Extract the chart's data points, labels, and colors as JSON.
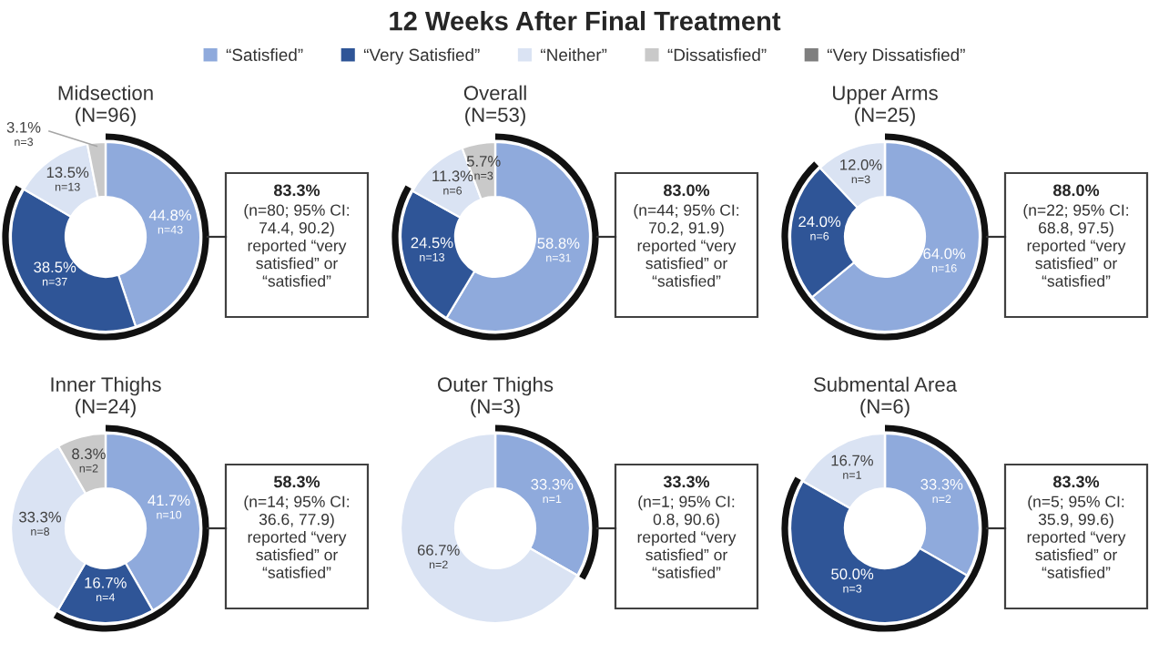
{
  "chart_data": [
    {
      "type": "other",
      "title": "12 Weeks After Final Treatment"
    },
    {
      "type": "donut",
      "title": "Midsection\n(N=96)",
      "legend": "top",
      "categories": [
        "“Satisfied”",
        "“Very Satisfied”",
        "“Neither”",
        "“Dissatisfied”",
        "“Very Dissatisfied”"
      ],
      "values": [
        44.8,
        38.5,
        13.5,
        3.1,
        0
      ],
      "colors": [
        "#8faadc",
        "#2f5597",
        "#dae3f3",
        "#c9c9c9",
        "#7f7f7f"
      ],
      "value_labels": [
        "44.8%\nn=43",
        "38.5%\nn=37",
        "13.5%\nn=13",
        "3.1%\nn=3",
        null
      ],
      "annotations": [
        "83.3%",
        "(n=80; 95% CI:\n74.4, 90.2)\nreported “very\nsatisfied” or\n“satisfied”"
      ]
    },
    {
      "type": "donut",
      "title": "Overall\n(N=53)",
      "values": [
        58.8,
        24.5,
        11.3,
        5.7,
        0
      ],
      "colors": [
        "#8faadc",
        "#2f5597",
        "#dae3f3",
        "#c9c9c9",
        "#7f7f7f"
      ],
      "value_labels": [
        "58.8%\nn=31",
        "24.5%\nn=13",
        "11.3%\nn=6",
        "5.7%\nn=3",
        null
      ],
      "annotations": [
        "83.0%",
        "(n=44; 95% CI:\n70.2, 91.9)\nreported “very\nsatisfied” or\n“satisfied”"
      ]
    },
    {
      "type": "donut",
      "title": "Upper Arms\n(N=25)",
      "values": [
        64.0,
        24.0,
        12.0,
        0,
        0
      ],
      "colors": [
        "#8faadc",
        "#2f5597",
        "#dae3f3",
        "#c9c9c9",
        "#7f7f7f"
      ],
      "value_labels": [
        "64.0%\nn=16",
        "24.0%\nn=6",
        "12.0%\nn=3",
        null,
        null
      ],
      "annotations": [
        "88.0%",
        "(n=22; 95% CI:\n68.8, 97.5)\nreported “very\nsatisfied” or\n“satisfied”"
      ]
    },
    {
      "type": "donut",
      "title": "Inner Thighs\n(N=24)",
      "values": [
        41.7,
        16.7,
        33.3,
        8.3,
        0
      ],
      "colors": [
        "#8faadc",
        "#2f5597",
        "#dae3f3",
        "#c9c9c9",
        "#7f7f7f"
      ],
      "value_labels": [
        "41.7%\nn=10",
        "16.7%\nn=4",
        "33.3%\nn=8",
        "8.3%\nn=2",
        null
      ],
      "annotations": [
        "58.3%",
        "(n=14; 95% CI:\n36.6, 77.9)\nreported “very\nsatisfied” or\n“satisfied”"
      ]
    },
    {
      "type": "donut",
      "title": "Outer Thighs\n(N=3)",
      "values": [
        33.3,
        0,
        66.7,
        0,
        0
      ],
      "colors": [
        "#8faadc",
        "#2f5597",
        "#dae3f3",
        "#c9c9c9",
        "#7f7f7f"
      ],
      "value_labels": [
        "33.3%\nn=1",
        null,
        "66.7%\nn=2",
        null,
        null
      ],
      "annotations": [
        "33.3%",
        "(n=1; 95% CI:\n0.8, 90.6)\nreported “very\nsatisfied” or\n“satisfied”"
      ]
    },
    {
      "type": "donut",
      "title": "Submental Area\n(N=6)",
      "values": [
        33.3,
        50.0,
        16.7,
        0,
        0
      ],
      "colors": [
        "#8faadc",
        "#2f5597",
        "#dae3f3",
        "#c9c9c9",
        "#7f7f7f"
      ],
      "value_labels": [
        "33.3%\nn=2",
        "50.0%\nn=3",
        "16.7%\nn=1",
        null,
        null
      ],
      "annotations": [
        "83.3%",
        "(n=5; 95% CI:\n35.9, 99.6)\nreported “very\nsatisfied” or\n“satisfied”"
      ]
    }
  ]
}
